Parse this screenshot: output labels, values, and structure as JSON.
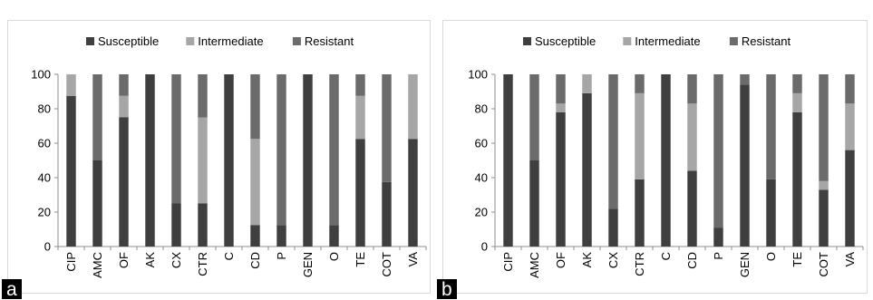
{
  "colors": {
    "susceptible": "#3f3f3f",
    "intermediate": "#a6a6a6",
    "resistant": "#6b6b6b",
    "axis": "#8c8c8c",
    "text": "#000000"
  },
  "chart_data": [
    {
      "type": "bar",
      "stacked": true,
      "panel_label": "a",
      "categories": [
        "CIP",
        "AMC",
        "OF",
        "AK",
        "CX",
        "CTR",
        "C",
        "CD",
        "P",
        "GEN",
        "O",
        "TE",
        "COT",
        "VA"
      ],
      "series": [
        {
          "name": "Susceptible",
          "color": "#3f3f3f",
          "values": [
            87.5,
            50,
            75,
            100,
            25,
            25,
            100,
            12.5,
            12.5,
            100,
            12.5,
            62.5,
            37.5,
            62.5
          ]
        },
        {
          "name": "Intermediate",
          "color": "#a6a6a6",
          "values": [
            12.5,
            0,
            12.5,
            0,
            0,
            50,
            0,
            50,
            0,
            0,
            0,
            25,
            0,
            37.5
          ]
        },
        {
          "name": "Resistant",
          "color": "#6b6b6b",
          "values": [
            0,
            50,
            12.5,
            0,
            75,
            25,
            0,
            37.5,
            87.5,
            0,
            87.5,
            12.5,
            62.5,
            0
          ]
        }
      ],
      "ylim": [
        0,
        100
      ],
      "yticks": [
        0,
        20,
        40,
        60,
        80,
        100
      ],
      "grid": false,
      "legend": "top"
    },
    {
      "type": "bar",
      "stacked": true,
      "panel_label": "b",
      "categories": [
        "CIP",
        "AMC",
        "OF",
        "AK",
        "CX",
        "CTR",
        "C",
        "CD",
        "P",
        "GEN",
        "O",
        "TE",
        "COT",
        "VA"
      ],
      "series": [
        {
          "name": "Susceptible",
          "color": "#3f3f3f",
          "values": [
            100,
            50,
            78,
            89,
            22,
            39,
            100,
            44,
            11,
            94,
            39,
            78,
            33,
            56
          ]
        },
        {
          "name": "Intermediate",
          "color": "#a6a6a6",
          "values": [
            0,
            0,
            5,
            11,
            0,
            50,
            0,
            39,
            0,
            0,
            0,
            11,
            5,
            27
          ]
        },
        {
          "name": "Resistant",
          "color": "#6b6b6b",
          "values": [
            0,
            50,
            17,
            0,
            78,
            11,
            0,
            17,
            89,
            6,
            61,
            11,
            62,
            17
          ]
        }
      ],
      "ylim": [
        0,
        100
      ],
      "yticks": [
        0,
        20,
        40,
        60,
        80,
        100
      ],
      "grid": false,
      "legend": "top"
    }
  ]
}
